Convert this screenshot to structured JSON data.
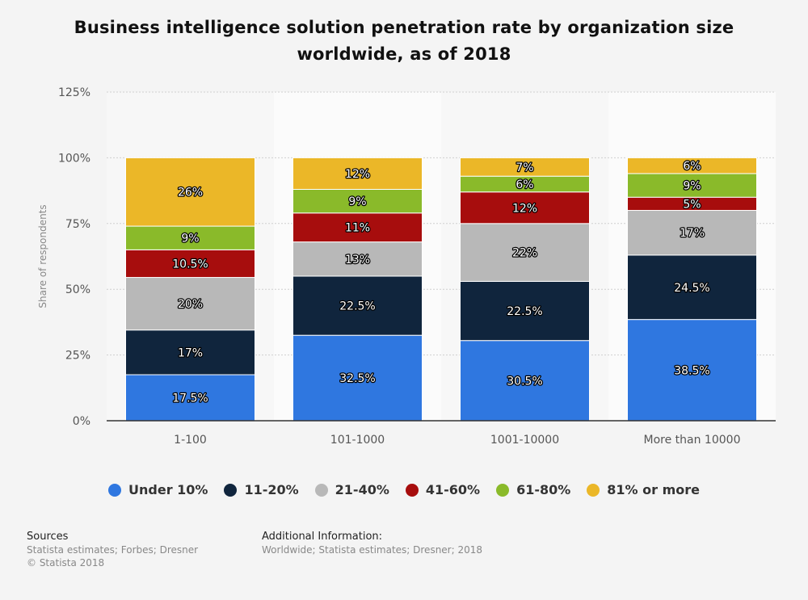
{
  "chart_data": {
    "type": "bar",
    "stacked": true,
    "title": "Business intelligence solution penetration rate by organization size worldwide, as of 2018",
    "xlabel": "",
    "ylabel": "Share of respondents",
    "ylim": [
      0,
      125
    ],
    "yticks": [
      "0%",
      "25%",
      "50%",
      "75%",
      "100%",
      "125%"
    ],
    "ytick_values": [
      0,
      25,
      50,
      75,
      100,
      125
    ],
    "categories": [
      "1-100",
      "101-1000",
      "1001-10000",
      "More than 10000"
    ],
    "series": [
      {
        "name": "Under 10%",
        "color": "#2f77e0",
        "values": [
          17.5,
          32.5,
          30.5,
          38.5
        ],
        "labels": [
          "17.5%",
          "32.5%",
          "30.5%",
          "38.5%"
        ]
      },
      {
        "name": "11-20%",
        "color": "#10253d",
        "values": [
          17,
          22.5,
          22.5,
          24.5
        ],
        "labels": [
          "17%",
          "22.5%",
          "22.5%",
          "24.5%"
        ]
      },
      {
        "name": "21-40%",
        "color": "#b8b8b8",
        "values": [
          20,
          13,
          22,
          17
        ],
        "labels": [
          "20%",
          "13%",
          "22%",
          "17%"
        ]
      },
      {
        "name": "41-60%",
        "color": "#a70d0d",
        "values": [
          10.5,
          11,
          12,
          5
        ],
        "labels": [
          "10.5%",
          "11%",
          "12%",
          "5%"
        ]
      },
      {
        "name": "61-80%",
        "color": "#8aba2a",
        "values": [
          9,
          9,
          6,
          9
        ],
        "labels": [
          "9%",
          "9%",
          "6%",
          "9%"
        ]
      },
      {
        "name": "81% or more",
        "color": "#ebb728",
        "values": [
          26,
          12,
          7,
          6
        ],
        "labels": [
          "26%",
          "12%",
          "7%",
          "6%"
        ]
      }
    ],
    "grid": true,
    "legend_position": "bottom"
  },
  "footer": {
    "sources_heading": "Sources",
    "sources_line1": "Statista estimates; Forbes; Dresner",
    "sources_line2": "© Statista 2018",
    "additional_heading": "Additional Information:",
    "additional_text": "Worldwide; Statista estimates; Dresner; 2018"
  }
}
